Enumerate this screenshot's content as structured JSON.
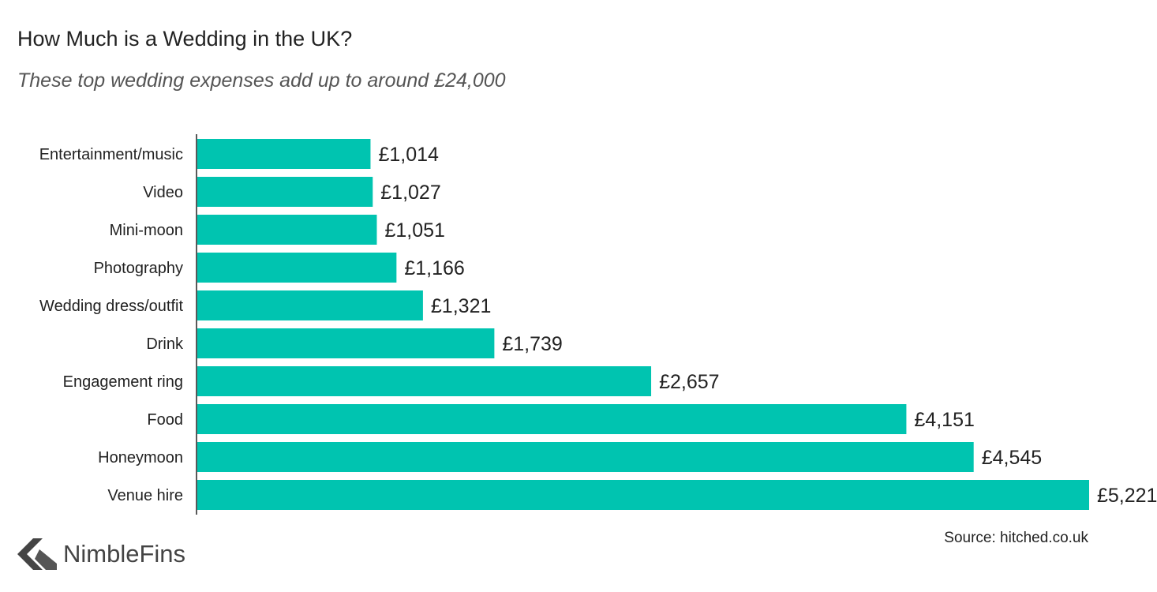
{
  "header": {
    "title": "How Much is a Wedding in the UK?",
    "subtitle": "These top wedding expenses add up to around £24,000"
  },
  "footer": {
    "source": "Source: hitched.co.uk",
    "brand": "NimbleFins",
    "brand_icon": "nimblefins-logo-icon"
  },
  "colors": {
    "bar": "#00c4b0",
    "axis": "#222222",
    "logo": "#444444"
  },
  "chart_data": {
    "type": "bar",
    "orientation": "horizontal",
    "categories": [
      "Entertainment/music",
      "Video",
      "Mini-moon",
      "Photography",
      "Wedding dress/outfit",
      "Drink",
      "Engagement ring",
      "Food",
      "Honeymoon",
      "Venue hire"
    ],
    "values": [
      1014,
      1027,
      1051,
      1166,
      1321,
      1739,
      2657,
      4151,
      4545,
      5221
    ],
    "value_labels": [
      "£1,014",
      "£1,027",
      "£1,051",
      "£1,166",
      "£1,321",
      "£1,739",
      "£2,657",
      "£4,151",
      "£4,545",
      "£5,221"
    ],
    "xlim": [
      0,
      5221
    ],
    "grid": false,
    "legend": "none"
  }
}
